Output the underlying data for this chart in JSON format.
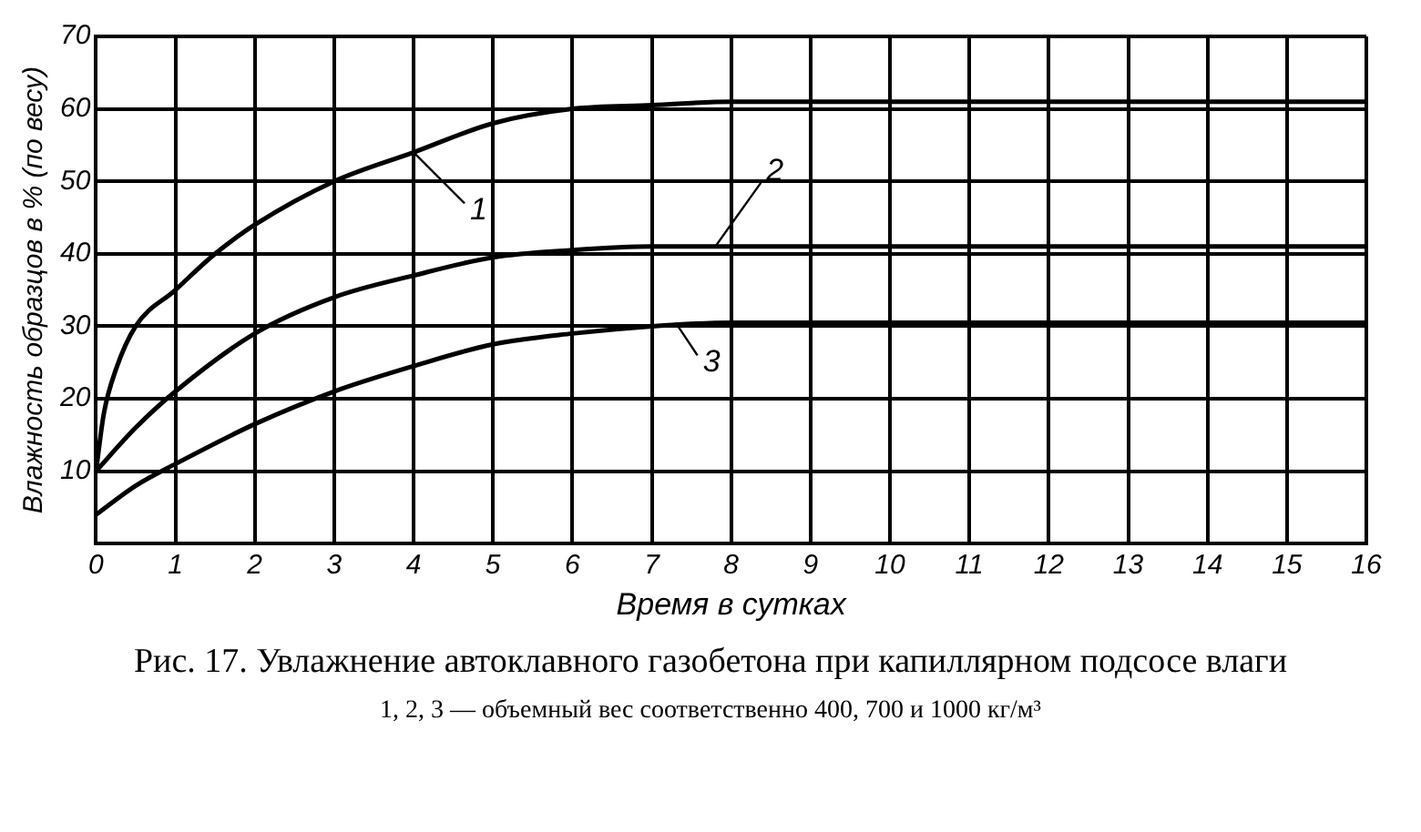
{
  "chart_data": {
    "type": "line",
    "title": "Рис. 17. Увлажнение автоклавного газобетона при капиллярном подсосе влаги",
    "xlabel": "Время в сутках",
    "ylabel": "Влажность образцов в % (по весу)",
    "annotations": [
      "1, 2, 3 — объемный вес соответственно 400, 700 и 1000 кг/м³"
    ],
    "xlim": [
      0,
      16
    ],
    "xticks": [
      0,
      1,
      2,
      3,
      4,
      5,
      6,
      7,
      8,
      9,
      10,
      11,
      12,
      13,
      14,
      15,
      16
    ],
    "ylim": [
      0,
      70
    ],
    "yticks": [
      {
        "value": 0,
        "label": null
      },
      10,
      20,
      30,
      40,
      50,
      60,
      70
    ],
    "grid": true,
    "legend": "center",
    "marker": "none",
    "line_style": "solid",
    "series": [
      {
        "name": "1",
        "color": "#000000",
        "x": [
          0,
          0.1,
          0.25,
          0.5,
          1,
          1.5,
          2,
          3,
          4,
          5,
          6,
          7,
          8,
          16
        ],
        "values": [
          10,
          18,
          24,
          30,
          35,
          40,
          44,
          50,
          54,
          58,
          60,
          60.5,
          61,
          61
        ]
      },
      {
        "name": "2",
        "color": "#000000",
        "x": [
          0,
          0.5,
          1,
          2,
          3,
          4,
          5,
          6,
          7,
          8,
          16
        ],
        "values": [
          10,
          16,
          21,
          29,
          34,
          37,
          39.5,
          40.5,
          41,
          41,
          41
        ]
      },
      {
        "name": "3",
        "color": "#000000",
        "x": [
          0,
          0.5,
          1,
          2,
          3,
          4,
          5,
          6,
          7,
          8,
          16
        ],
        "values": [
          4,
          8,
          11,
          16.5,
          21,
          24.5,
          27.5,
          29,
          30,
          30.5,
          30.5
        ]
      }
    ]
  }
}
